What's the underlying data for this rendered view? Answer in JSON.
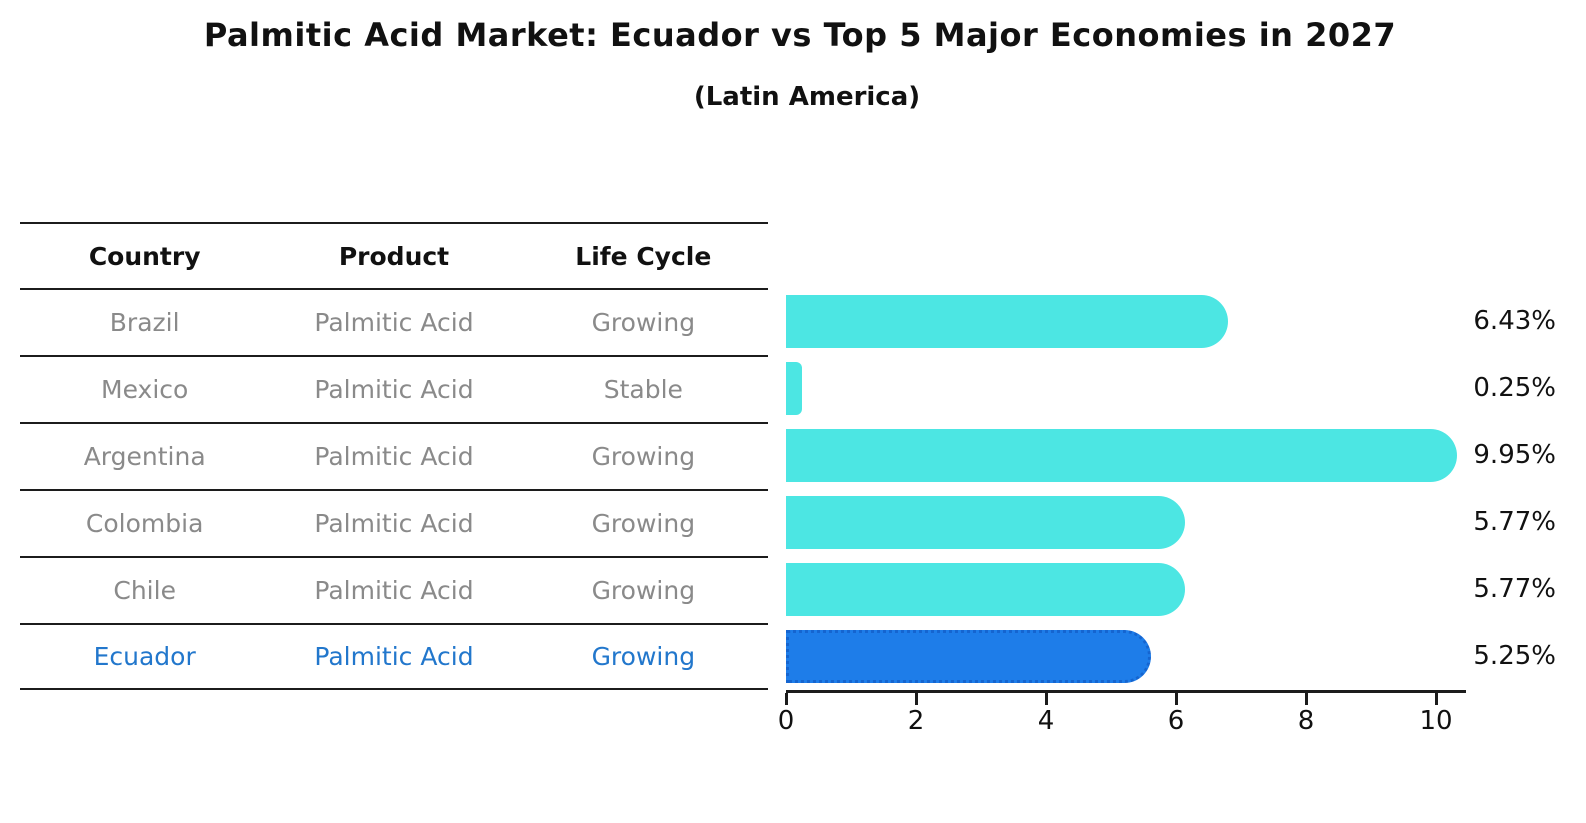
{
  "title": "Palmitic Acid Market: Ecuador vs Top 5 Major Economies in 2027",
  "subtitle": "(Latin America)",
  "table": {
    "headers": {
      "country": "Country",
      "product": "Product",
      "life_cycle": "Life Cycle"
    },
    "rows": [
      {
        "country": "Brazil",
        "product": "Palmitic Acid",
        "life_cycle": "Growing"
      },
      {
        "country": "Mexico",
        "product": "Palmitic Acid",
        "life_cycle": "Stable"
      },
      {
        "country": "Argentina",
        "product": "Palmitic Acid",
        "life_cycle": "Growing"
      },
      {
        "country": "Colombia",
        "product": "Palmitic Acid",
        "life_cycle": "Growing"
      },
      {
        "country": "Chile",
        "product": "Palmitic Acid",
        "life_cycle": "Growing"
      },
      {
        "country": "Ecuador",
        "product": "Palmitic Acid",
        "life_cycle": "Growing"
      }
    ],
    "highlighted_row": "Ecuador"
  },
  "chart_data": {
    "type": "bar",
    "orientation": "horizontal",
    "title": "Palmitic Acid Market: Ecuador vs Top 5 Major Economies in 2027",
    "subtitle": "(Latin America)",
    "categories": [
      "Brazil",
      "Mexico",
      "Argentina",
      "Colombia",
      "Chile",
      "Ecuador"
    ],
    "values": [
      6.43,
      0.25,
      9.95,
      5.77,
      5.77,
      5.25
    ],
    "value_labels": [
      "6.43%",
      "0.25%",
      "9.95%",
      "5.77%",
      "5.77%",
      "5.25%"
    ],
    "xlabel": "",
    "ylabel": "",
    "xlim": [
      0,
      10.5
    ],
    "xticks": [
      "0",
      "2",
      "4",
      "6",
      "8",
      "10"
    ],
    "grid": false,
    "legend": false,
    "highlight_category": "Ecuador",
    "colors": {
      "bar_default": "#4ce6e3",
      "bar_highlight": "#1e7de9",
      "bar_highlight_border": "#1565d0",
      "text_muted": "#8a8a8a",
      "text_highlight": "#2277cc",
      "text_main": "#111111"
    }
  }
}
